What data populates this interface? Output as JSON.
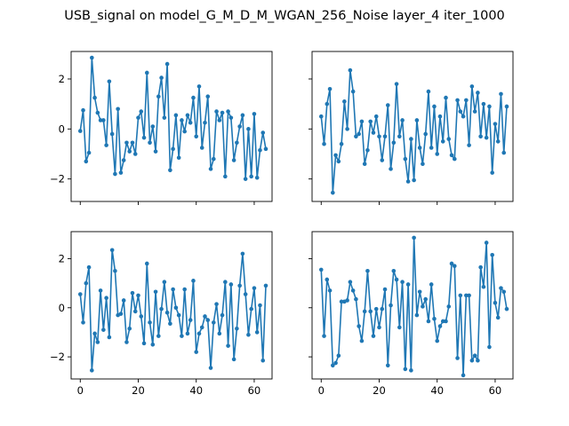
{
  "title": "USB_signal on model_G_M_D_M_WGAN_256_Noise layer_4 iter_1000",
  "colors": {
    "series": "#1f77b4",
    "axes": "#000000",
    "background": "#ffffff"
  },
  "chart_data": [
    {
      "type": "line",
      "panel": "top-left",
      "xlim": [
        -3.15,
        66.15
      ],
      "ylim": [
        -2.9,
        3.1
      ],
      "xticks": [
        0,
        20,
        40,
        60
      ],
      "xtick_labels": [
        "",
        "",
        "",
        ""
      ],
      "yticks": [
        -2,
        0,
        2
      ],
      "ytick_labels": [
        "−2",
        "0",
        "2"
      ],
      "grid": false,
      "marker": "circle",
      "values": [
        -0.08,
        0.75,
        -1.3,
        -0.95,
        2.85,
        1.25,
        0.65,
        0.35,
        0.35,
        -0.65,
        1.9,
        -0.2,
        -1.8,
        0.8,
        -1.75,
        -1.25,
        -0.55,
        -0.9,
        -0.55,
        -1.0,
        0.45,
        0.7,
        -0.35,
        2.25,
        -0.55,
        0.1,
        -0.9,
        1.3,
        2.05,
        0.45,
        2.6,
        -1.65,
        -0.8,
        0.55,
        -1.15,
        0.35,
        -0.1,
        0.55,
        0.25,
        1.25,
        -0.3,
        1.7,
        -0.75,
        0.25,
        1.3,
        -1.6,
        -1.2,
        0.7,
        0.35,
        0.65,
        -1.9,
        0.7,
        0.45,
        -1.25,
        -0.55,
        0.1,
        0.55,
        -2.0,
        0.0,
        -1.9,
        0.6,
        -1.95,
        -0.85,
        -0.15,
        -0.8
      ]
    },
    {
      "type": "line",
      "panel": "top-right",
      "xlim": [
        -3.15,
        66.15
      ],
      "ylim": [
        -2.9,
        3.1
      ],
      "xticks": [
        0,
        20,
        40,
        60
      ],
      "xtick_labels": [
        "",
        "",
        "",
        ""
      ],
      "yticks": [
        -2,
        0,
        2
      ],
      "ytick_labels": [
        "",
        "",
        ""
      ],
      "grid": false,
      "marker": "circle",
      "values": [
        0.5,
        -0.6,
        1.0,
        1.6,
        -2.55,
        -1.05,
        -1.3,
        -0.6,
        1.1,
        0.0,
        2.35,
        1.5,
        -0.3,
        -0.2,
        0.3,
        -1.4,
        -0.85,
        0.3,
        -0.15,
        0.5,
        -0.3,
        -1.25,
        -0.3,
        0.95,
        -1.6,
        -0.55,
        1.8,
        -0.3,
        0.35,
        -1.2,
        -2.1,
        -0.4,
        -2.05,
        0.35,
        -0.75,
        -1.4,
        -0.2,
        1.5,
        -0.75,
        0.9,
        -1.0,
        0.5,
        -0.5,
        1.25,
        -0.4,
        -1.05,
        -1.2,
        1.15,
        0.7,
        0.5,
        1.15,
        -0.65,
        1.7,
        0.7,
        1.45,
        -0.3,
        1.0,
        -0.35,
        0.9,
        -1.75,
        0.2,
        -0.5,
        1.4,
        -0.95,
        0.9
      ]
    },
    {
      "type": "line",
      "panel": "bottom-left",
      "xlim": [
        -3.15,
        66.15
      ],
      "ylim": [
        -2.9,
        3.1
      ],
      "xticks": [
        0,
        20,
        40,
        60
      ],
      "xtick_labels": [
        "0",
        "20",
        "40",
        "60"
      ],
      "yticks": [
        -2,
        0,
        2
      ],
      "ytick_labels": [
        "−2",
        "0",
        "2"
      ],
      "grid": false,
      "marker": "circle",
      "values": [
        0.55,
        -0.6,
        1.0,
        1.65,
        -2.55,
        -1.05,
        -1.4,
        0.7,
        -0.9,
        0.4,
        -1.2,
        2.35,
        1.5,
        -0.3,
        -0.25,
        0.3,
        -1.4,
        -0.85,
        0.6,
        -0.15,
        0.5,
        -0.35,
        -1.45,
        1.8,
        -0.6,
        -1.5,
        0.65,
        -1.15,
        -0.05,
        1.05,
        -0.2,
        -0.65,
        0.75,
        0.0,
        -0.3,
        -1.15,
        0.75,
        -1.05,
        -0.5,
        1.1,
        -1.8,
        -1.05,
        -0.8,
        -0.35,
        -0.5,
        -2.45,
        -0.6,
        0.15,
        -1.05,
        -0.3,
        1.05,
        -1.55,
        0.95,
        -2.1,
        -0.85,
        0.9,
        2.2,
        0.55,
        -1.1,
        -0.05,
        0.8,
        -1.0,
        0.1,
        -2.15,
        0.9
      ]
    },
    {
      "type": "line",
      "panel": "bottom-right",
      "xlim": [
        -3.15,
        66.15
      ],
      "ylim": [
        -2.9,
        3.1
      ],
      "xticks": [
        0,
        20,
        40,
        60
      ],
      "xtick_labels": [
        "0",
        "20",
        "40",
        "60"
      ],
      "yticks": [
        -2,
        0,
        2
      ],
      "ytick_labels": [
        "",
        "",
        ""
      ],
      "grid": false,
      "marker": "circle",
      "values": [
        1.55,
        -1.15,
        1.15,
        0.7,
        -2.35,
        -2.25,
        -1.95,
        0.25,
        0.25,
        0.3,
        1.05,
        0.7,
        0.35,
        -0.75,
        -1.35,
        -0.15,
        1.5,
        -0.15,
        -1.15,
        -0.05,
        -0.8,
        -0.05,
        0.75,
        -2.35,
        0.1,
        1.5,
        1.15,
        -0.8,
        1.05,
        -2.5,
        0.95,
        -2.55,
        2.85,
        -0.3,
        0.65,
        0.05,
        0.35,
        -0.55,
        0.95,
        -0.45,
        -1.35,
        -0.75,
        -0.55,
        -0.55,
        0.05,
        1.8,
        1.7,
        -2.05,
        0.5,
        -2.75,
        0.5,
        0.5,
        -2.15,
        -1.95,
        -2.15,
        1.65,
        0.85,
        2.65,
        -1.6,
        2.15,
        0.2,
        -0.4,
        0.8,
        0.65,
        -0.05
      ]
    }
  ]
}
